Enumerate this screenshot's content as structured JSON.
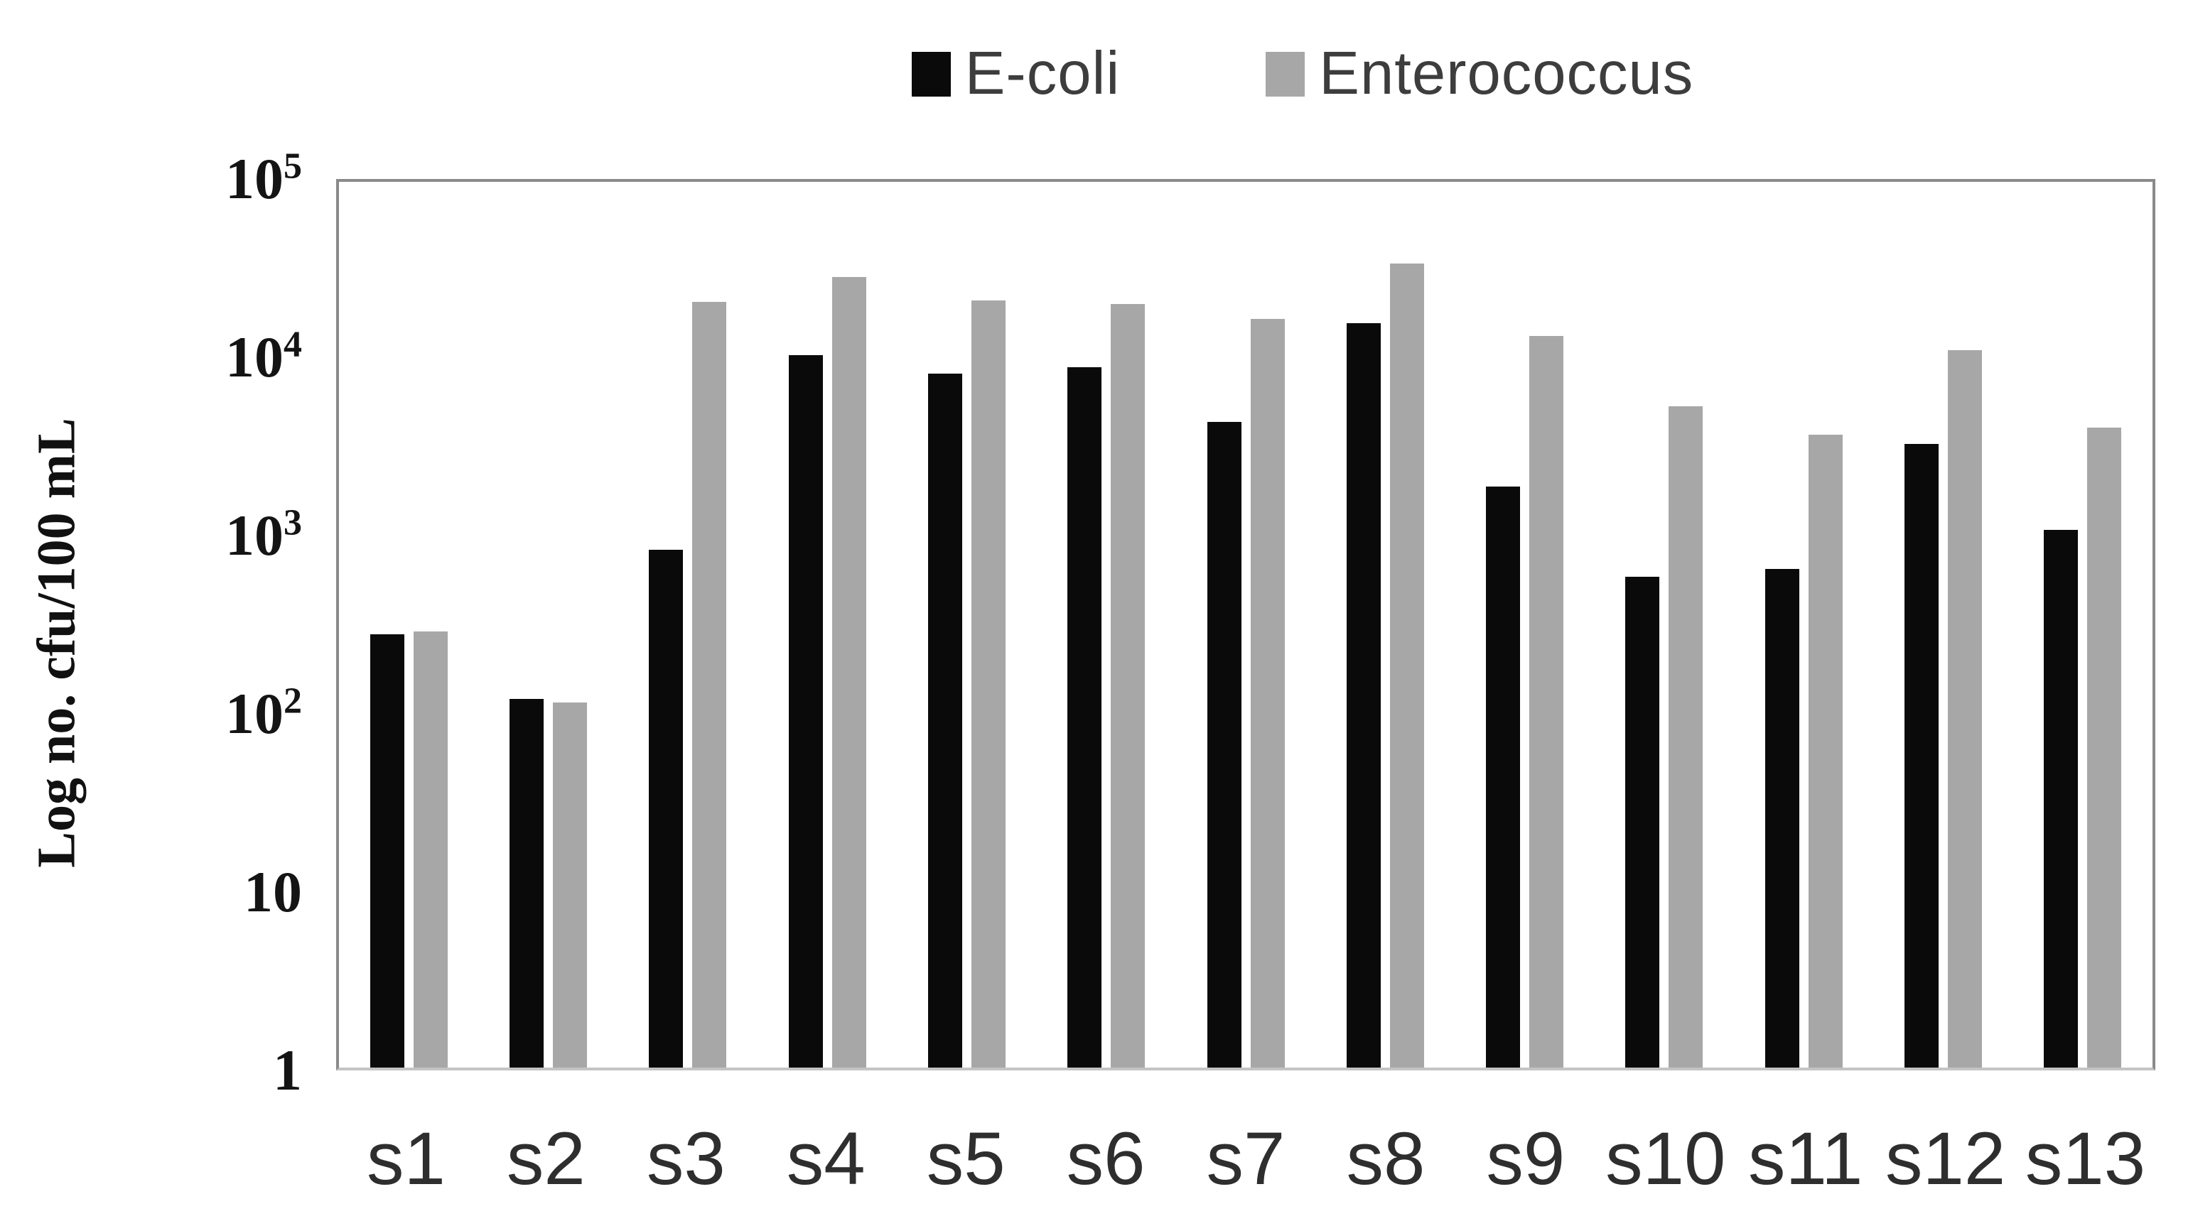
{
  "legend": {
    "items": [
      {
        "label": "E-coli",
        "color": "#0a0a0a"
      },
      {
        "label": "Enterococcus",
        "color": "#a7a7a7"
      }
    ]
  },
  "y_axis": {
    "title": "Log no. cfu/100 mL",
    "ticks": [
      {
        "base": "10",
        "sup": "5"
      },
      {
        "base": "10",
        "sup": "4"
      },
      {
        "base": "10",
        "sup": "3"
      },
      {
        "base": "10",
        "sup": "2"
      },
      {
        "base": "10",
        "sup": ""
      },
      {
        "base": "1",
        "sup": ""
      }
    ]
  },
  "chart_data": {
    "type": "bar",
    "scale": "log",
    "title": "",
    "xlabel": "",
    "ylabel": "Log no. cfu/100 mL",
    "ylim": [
      1,
      100000
    ],
    "grid": false,
    "legend_position": "top-center",
    "categories": [
      "s1",
      "s2",
      "s3",
      "s4",
      "s5",
      "s6",
      "s7",
      "s8",
      "s9",
      "s10",
      "s11",
      "s12",
      "s13"
    ],
    "series": [
      {
        "name": "E-coli",
        "color": "#0a0a0a",
        "values": [
          280,
          120,
          840,
          10500,
          8300,
          9000,
          4400,
          16000,
          1900,
          590,
          650,
          3300,
          1080
        ]
      },
      {
        "name": "Enterococcus",
        "color": "#a7a7a7",
        "values": [
          290,
          115,
          21000,
          29000,
          21500,
          20500,
          16800,
          34500,
          13500,
          5400,
          3750,
          11200,
          4100
        ]
      }
    ]
  }
}
